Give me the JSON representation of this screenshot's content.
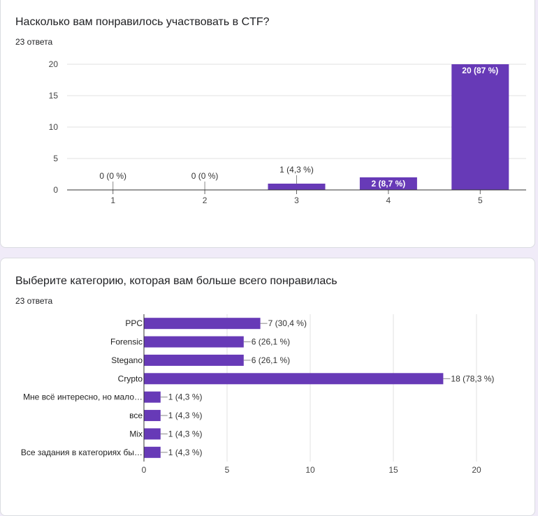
{
  "colors": {
    "bar": "#673ab7",
    "grid": "#e0e0e0",
    "axis": "#333333",
    "page_bg": "#f0ebf8"
  },
  "questions": [
    {
      "title": "Насколько вам понравилось участвовать в CTF?",
      "responses": "23 ответа"
    },
    {
      "title": "Выберите категорию, которая вам больше всего понравилась",
      "responses": "23 ответа"
    }
  ],
  "chart_data": [
    {
      "type": "bar",
      "orientation": "vertical",
      "title": "Насколько вам понравилось участвовать в CTF?",
      "categories": [
        "1",
        "2",
        "3",
        "4",
        "5"
      ],
      "values": [
        0,
        0,
        1,
        2,
        20
      ],
      "labels": [
        "0 (0 %)",
        "0 (0 %)",
        "1 (4,3 %)",
        "2 (8,7 %)",
        "20 (87 %)"
      ],
      "ylim": [
        0,
        20
      ],
      "yticks": [
        0,
        5,
        10,
        15,
        20
      ],
      "grid": true
    },
    {
      "type": "bar",
      "orientation": "horizontal",
      "title": "Выберите категорию, которая вам больше всего понравилась",
      "categories": [
        "PPC",
        "Forensic",
        "Stegano",
        "Crypto",
        "Мне всё интересно, но мало…",
        "все",
        "Mix",
        "Все задания в категориях бы…"
      ],
      "values": [
        7,
        6,
        6,
        18,
        1,
        1,
        1,
        1
      ],
      "labels": [
        "7 (30,4 %)",
        "6 (26,1 %)",
        "6 (26,1 %)",
        "18 (78,3 %)",
        "1 (4,3 %)",
        "1 (4,3 %)",
        "1 (4,3 %)",
        "1 (4,3 %)"
      ],
      "xlim": [
        0,
        20
      ],
      "xticks": [
        0,
        5,
        10,
        15,
        20
      ],
      "grid": true
    }
  ]
}
